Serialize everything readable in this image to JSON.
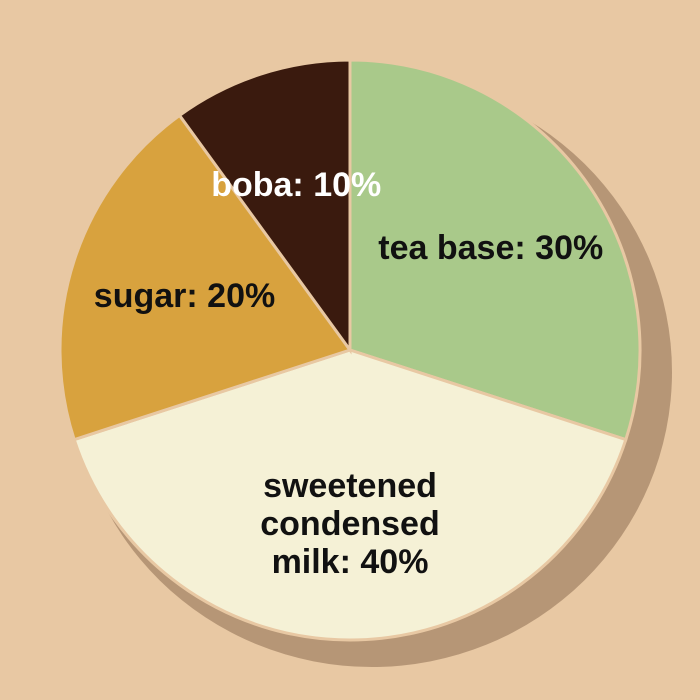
{
  "chart_data": {
    "type": "pie",
    "categories": [
      "tea base:",
      "sweetened condensed milk:",
      "sugar:",
      "boba:"
    ],
    "values": [
      30,
      40,
      20,
      10
    ],
    "value_labels": [
      "30%",
      "40%",
      "20%",
      "10%"
    ],
    "colors": [
      "#a9c98a",
      "#f5f1d6",
      "#d8a23e",
      "#3a1a0e"
    ]
  }
}
